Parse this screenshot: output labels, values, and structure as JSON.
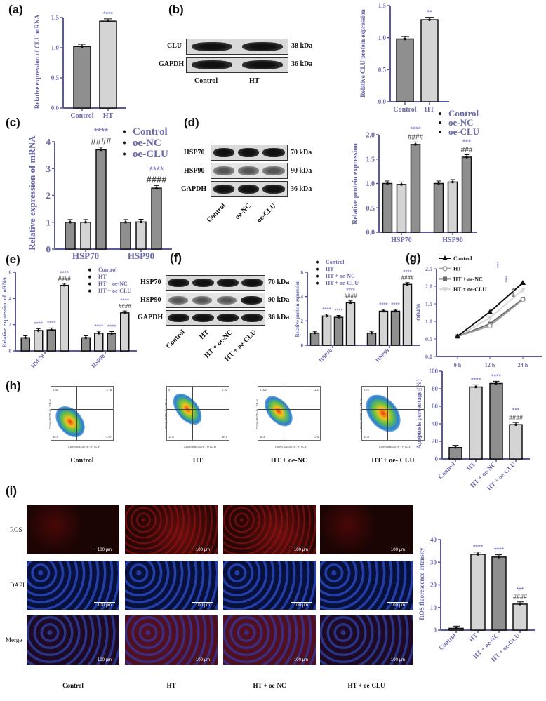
{
  "panels": {
    "a": "(a)",
    "b": "(b)",
    "c": "(c)",
    "d": "(d)",
    "e": "(e)",
    "f": "(f)",
    "g": "(g)",
    "h": "(h)",
    "i": "(i)"
  },
  "colors": {
    "axis": "#5a5a9e",
    "dark_bar": "#8f8f8f",
    "light_bar": "#d4d4d4",
    "stars": "#8a8ac8",
    "hashes": "#555555"
  },
  "blot_b": {
    "rows": [
      {
        "label": "CLU",
        "kda": "38 kDa"
      },
      {
        "label": "GAPDH",
        "kda": "36 kDa"
      }
    ],
    "lanes": [
      "Control",
      "HT"
    ]
  },
  "blot_d": {
    "rows": [
      {
        "label": "HSP70",
        "kda": "70 kDa"
      },
      {
        "label": "HSP90",
        "kda": "90 kDa"
      },
      {
        "label": "GAPDH",
        "kda": "36 kDa"
      }
    ],
    "lanes": [
      "Control",
      "oe-NC",
      "oe-CLU"
    ]
  },
  "blot_f": {
    "rows": [
      {
        "label": "HSP70",
        "kda": "70 kDa"
      },
      {
        "label": "HSP90",
        "kda": "90 kDa"
      },
      {
        "label": "GAPDH",
        "kda": "36 kDa"
      }
    ],
    "lanes": [
      "Control",
      "HT",
      "HT + oe-NC",
      "HT + oe-CLU"
    ]
  },
  "flow": {
    "xaxis": "Comp-BB530-H :: FITC-H",
    "yaxis": "Comp-BB700-H :: PE-H",
    "plots": [
      {
        "label": "Control",
        "q1": "0.35",
        "q2": "3.78",
        "q3": "4.97",
        "q4": "90.9"
      },
      {
        "label": "HT",
        "q1": "0",
        "q2": "7.22",
        "q3": "80.0",
        "q4": "12.8"
      },
      {
        "label": "HT + oe-NC",
        "q1": "0.022",
        "q2": "11.1",
        "q3": "72.4",
        "q4": "16.5"
      },
      {
        "label": "HT + oe- CLU",
        "q1": "0.74",
        "q2": "13.4",
        "q3": "22.8",
        "q4": "62.8"
      }
    ]
  },
  "micro": {
    "rows": [
      "ROS",
      "DAPI",
      "Merge"
    ],
    "cols": [
      "Control",
      "HT",
      "HT + oe-NC",
      "HT + oe-CLU"
    ],
    "scale": "100 μm"
  },
  "chart_data": [
    {
      "id": "a",
      "type": "bar",
      "ylabel": "Relative expression of CLU mRNA",
      "ylim": [
        0,
        1.5
      ],
      "yticks": [
        "0.0",
        "0.5",
        "1.0",
        "1.5"
      ],
      "categories": [
        "Control",
        "HT"
      ],
      "series": [
        {
          "values": [
            1.02,
            1.44
          ],
          "bar_colors": [
            "dark",
            "light"
          ],
          "annotations": [
            [],
            [
              "****"
            ]
          ]
        }
      ]
    },
    {
      "id": "b",
      "type": "bar",
      "ylabel": "Relative CLU protein expression",
      "ylim": [
        0,
        1.5
      ],
      "yticks": [
        "0.0",
        "0.5",
        "1.0",
        "1.5"
      ],
      "categories": [
        "Control",
        "HT"
      ],
      "series": [
        {
          "values": [
            0.98,
            1.28
          ],
          "bar_colors": [
            "dark",
            "light"
          ],
          "annotations": [
            [],
            [
              "**"
            ]
          ]
        }
      ]
    },
    {
      "id": "c",
      "type": "bar",
      "ylabel": "Relative expression of mRNA",
      "ylim": [
        0,
        4
      ],
      "yticks": [
        "0",
        "1",
        "2",
        "3",
        "4"
      ],
      "categories": [
        "HSP70",
        "HSP90"
      ],
      "legend": "top-right",
      "series": [
        {
          "name": "Control",
          "color": "dark",
          "values": [
            1.0,
            1.0
          ],
          "annotations": [
            [],
            []
          ]
        },
        {
          "name": "oe-NC",
          "color": "light",
          "values": [
            1.0,
            1.01
          ],
          "annotations": [
            [],
            []
          ]
        },
        {
          "name": "oe-CLU",
          "color": "dark",
          "values": [
            3.7,
            2.27
          ],
          "annotations": [
            [
              "****",
              "####"
            ],
            [
              "****",
              "####"
            ]
          ]
        }
      ]
    },
    {
      "id": "d",
      "type": "bar",
      "ylabel": "Relative protein expression",
      "ylim": [
        0,
        2
      ],
      "yticks": [
        "0.0",
        "0.5",
        "1.0",
        "1.5",
        "2.0"
      ],
      "categories": [
        "HSP70",
        "HSP90"
      ],
      "legend": "top-right",
      "series": [
        {
          "name": "Control",
          "color": "dark",
          "values": [
            1.0,
            1.0
          ],
          "annotations": [
            [],
            []
          ]
        },
        {
          "name": "oe-NC",
          "color": "light",
          "values": [
            0.98,
            1.03
          ],
          "annotations": [
            [],
            []
          ]
        },
        {
          "name": "oe-CLU",
          "color": "dark",
          "values": [
            1.8,
            1.54
          ],
          "annotations": [
            [
              "****",
              "####"
            ],
            [
              "***",
              "###"
            ]
          ]
        }
      ]
    },
    {
      "id": "e",
      "type": "bar",
      "ylabel": "Relative expression of mRNA",
      "ylim": [
        0,
        6
      ],
      "yticks": [
        "0",
        "2",
        "4",
        "6"
      ],
      "categories": [
        "HSP70",
        "HSP90"
      ],
      "legend": "top-right",
      "series": [
        {
          "name": "Control",
          "color": "dark",
          "values": [
            1.0,
            1.0
          ],
          "annotations": [
            [],
            []
          ]
        },
        {
          "name": "HT",
          "color": "light",
          "values": [
            1.55,
            1.35
          ],
          "annotations": [
            [
              "****"
            ],
            [
              "****"
            ]
          ]
        },
        {
          "name": "HT + oe-NC",
          "color": "dark",
          "values": [
            1.6,
            1.32
          ],
          "annotations": [
            [
              "****"
            ],
            [
              "****"
            ]
          ]
        },
        {
          "name": "HT + oe-CLU",
          "color": "light",
          "values": [
            5.0,
            2.9
          ],
          "annotations": [
            [
              "****",
              "####"
            ],
            [
              "****",
              "####"
            ]
          ]
        }
      ]
    },
    {
      "id": "f",
      "type": "bar",
      "ylabel": "Relative protein expression",
      "ylim": [
        0,
        6
      ],
      "yticks": [
        "0",
        "2",
        "4",
        "6"
      ],
      "categories": [
        "HSP70",
        "HSP90"
      ],
      "legend": "top-left",
      "series": [
        {
          "name": "Control",
          "color": "dark",
          "values": [
            1.0,
            1.0
          ],
          "annotations": [
            [],
            []
          ]
        },
        {
          "name": "HT",
          "color": "light",
          "values": [
            2.4,
            2.8
          ],
          "annotations": [
            [
              "****"
            ],
            [
              "****"
            ]
          ]
        },
        {
          "name": "HT + oe-NC",
          "color": "dark",
          "values": [
            2.3,
            2.8
          ],
          "annotations": [
            [
              "****"
            ],
            [
              "****"
            ]
          ]
        },
        {
          "name": "HT + oe-CLU",
          "color": "light",
          "values": [
            3.5,
            5.0
          ],
          "annotations": [
            [
              "****",
              "####"
            ],
            [
              "****",
              "####"
            ]
          ]
        }
      ]
    },
    {
      "id": "g",
      "type": "line",
      "ylabel": "OD450",
      "ylim": [
        0,
        2.5
      ],
      "yticks": [
        "0.0",
        "0.5",
        "1.0",
        "1.5",
        "2.0",
        "2.5"
      ],
      "x": [
        "0 h",
        "12 h",
        "24 h"
      ],
      "legend": "top-left",
      "annotations": [
        "****",
        "****",
        "####"
      ],
      "series": [
        {
          "name": "Control",
          "color": "#111111",
          "marker": "triangle",
          "values": [
            0.58,
            1.27,
            2.1
          ]
        },
        {
          "name": "HT",
          "color": "#a0a0a0",
          "marker": "circle",
          "values": [
            0.57,
            0.87,
            1.62
          ]
        },
        {
          "name": "HT + oe-NC",
          "color": "#6a6a6a",
          "marker": "square",
          "values": [
            0.57,
            0.93,
            1.64
          ]
        },
        {
          "name": "HT + oe-CLU",
          "color": "#d8d8d8",
          "marker": "triangle-down",
          "values": [
            0.57,
            1.1,
            1.9
          ]
        }
      ]
    },
    {
      "id": "h",
      "type": "bar",
      "ylabel": "Apoptosis percentage (%)",
      "ylim": [
        0,
        100
      ],
      "yticks": [
        "0",
        "20",
        "40",
        "60",
        "80",
        "100"
      ],
      "categories": [
        "Control",
        "HT",
        "HT + oe-NC",
        "HT + oe-CLU"
      ],
      "series": [
        {
          "values": [
            13,
            82,
            86,
            39
          ],
          "bar_colors": [
            "dark",
            "light",
            "dark",
            "light"
          ],
          "annotations": [
            [],
            [
              "****"
            ],
            [
              "****"
            ],
            [
              "***",
              "####"
            ]
          ]
        }
      ]
    },
    {
      "id": "i",
      "type": "bar",
      "ylabel": "ROS fluorescence intensity",
      "ylim": [
        0,
        40
      ],
      "yticks": [
        "0",
        "10",
        "20",
        "30",
        "40"
      ],
      "categories": [
        "Control",
        "HT",
        "HT + oe-NC",
        "HT + oe-CLU"
      ],
      "series": [
        {
          "values": [
            0.8,
            33.5,
            32.3,
            11.5
          ],
          "bar_colors": [
            "dark",
            "light",
            "dark",
            "light"
          ],
          "annotations": [
            [],
            [
              "****"
            ],
            [
              "****"
            ],
            [
              "***",
              "####"
            ]
          ]
        }
      ]
    }
  ]
}
